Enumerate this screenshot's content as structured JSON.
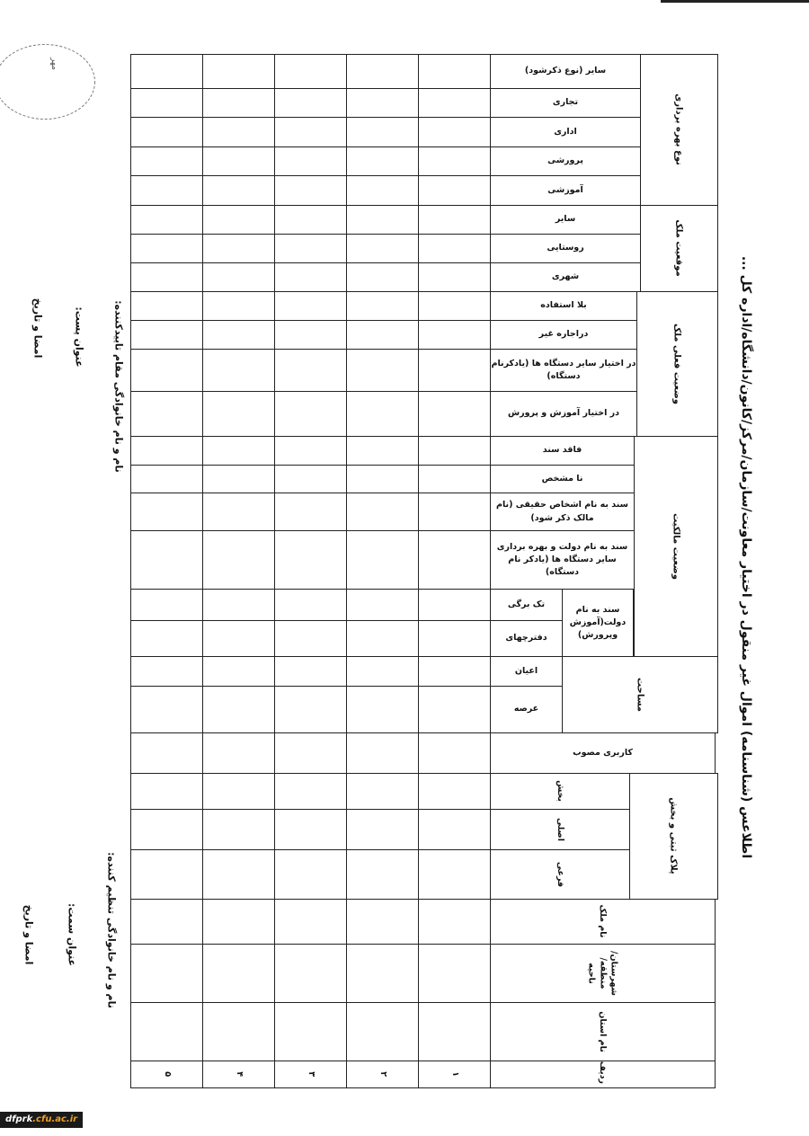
{
  "title": "اطلاعس (شناسنامه) اموال غیر منقول در اختیار معاونت/سازمان/مرکز/کانون/دانشگاه/اداره کل ...",
  "groups": {
    "usage_type": "نوع بهره برداری",
    "location": "موقعیت ملک",
    "current_status": "وضعیت فعلی ملک",
    "ownership": "وضعیت مالکیت",
    "gov_deed": "سند به نام دولت(آموزش وپرورش)",
    "area": "مساحت",
    "registry": "پلاک ثبتی و بخش"
  },
  "rows": [
    "سایر (نوع ذکرشود)",
    "تجاری",
    "اداری",
    "پرورشی",
    "آموزشی",
    "سایر",
    "روستایی",
    "شهری",
    "بلا استفاده",
    "دراجاره غیر",
    "در اختیار سایر دستگاه ها (یادکرنام دستگاه)",
    "در اختیار آموزش و پرورش",
    "فاقد سند",
    "نا مشخص",
    "سند به نام اشخاص حقیقی (نام مالک ذکر شود)",
    "سند به نام دولت و بهره برداری سایر دستگاه ها (یادکر نام دستگاه)",
    "تک برگی",
    "دفترچهای",
    "اعیان",
    "عرصه",
    "کاربری مصوب",
    "بخش",
    "اصلی",
    "فرعی",
    "نام ملک",
    "شهرستان/ منطقه/ ناحیه",
    "نام استان",
    "ردیف"
  ],
  "row_numbers": [
    "۱",
    "۲",
    "۳",
    "۴",
    "۵"
  ],
  "signatures": {
    "approver_name": "نام و نام خانوادگی مقام تاییدکننده:",
    "approver_post": "عنوان پست:",
    "approver_sign": "امضا و تاریخ",
    "preparer_name": "نام و نام خانوادگی تنظیم کننده:",
    "preparer_post": "عنوان سمت:",
    "preparer_sign": "امضا و تاریخ"
  },
  "stamp_text": "مهر",
  "footer": {
    "prefix": "dfprk",
    "suffix": ".cfu.ac.ir"
  }
}
